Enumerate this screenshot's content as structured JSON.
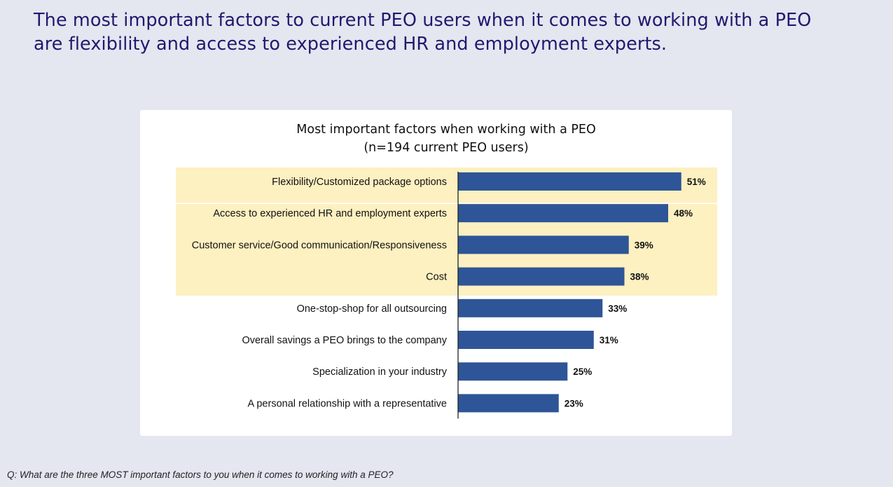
{
  "headline": {
    "line1": "The most important factors to current PEO users when it comes to working with a PEO",
    "line2": "are flexibility and access to experienced HR and employment experts."
  },
  "chart_data": {
    "type": "bar",
    "orientation": "horizontal",
    "title": "Most important factors when working with a PEO",
    "subtitle": "(n=194 current PEO users)",
    "categories": [
      "Flexibility/Customized package options",
      "Access to experienced HR and employment experts",
      "Customer service/Good communication/Responsiveness",
      "Cost",
      "One-stop-shop for all outsourcing",
      "Overall savings a PEO brings to the company",
      "Specialization in your industry",
      "A personal relationship with a representative"
    ],
    "values": [
      51,
      48,
      39,
      38,
      33,
      31,
      25,
      23
    ],
    "value_labels": [
      "51%",
      "48%",
      "39%",
      "38%",
      "33%",
      "31%",
      "25%",
      "23%"
    ],
    "highlighted_count": 4,
    "xlim": [
      0,
      100
    ],
    "grid": false,
    "legend": "none",
    "colors": {
      "bar": "#2e5597",
      "highlight": "#fdf0c1",
      "axis": "#222222"
    }
  },
  "footnote": "Q: What are the three MOST important factors to you when it comes to working with a PEO?"
}
